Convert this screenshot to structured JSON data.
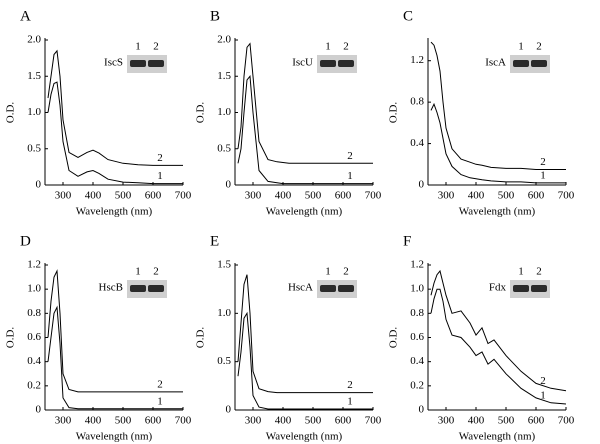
{
  "chart_data": [
    {
      "type": "line",
      "title": "A",
      "xlabel": "Wavelength (nm)",
      "ylabel": "O.D.",
      "x": [
        250,
        260,
        270,
        280,
        290,
        300,
        320,
        350,
        380,
        400,
        420,
        450,
        500,
        550,
        600,
        650,
        700
      ],
      "xlim": [
        240,
        700
      ],
      "xticks": [
        300,
        400,
        500,
        600,
        700
      ],
      "ylim": [
        0,
        2.0
      ],
      "yticks": [
        0,
        0.5,
        {
          "value": 1,
          "label": "1.0"
        },
        1.5,
        {
          "value": 2,
          "label": "2.0"
        }
      ],
      "series": [
        {
          "name": "1",
          "color": "#000000",
          "values": [
            1.0,
            1.25,
            1.4,
            1.42,
            1.1,
            0.6,
            0.2,
            0.12,
            0.18,
            0.2,
            0.16,
            0.08,
            0.04,
            0.03,
            0.02,
            0.02,
            0.02
          ]
        },
        {
          "name": "2",
          "color": "#000000",
          "values": [
            1.2,
            1.5,
            1.8,
            1.85,
            1.5,
            0.9,
            0.45,
            0.38,
            0.45,
            0.48,
            0.44,
            0.35,
            0.3,
            0.28,
            0.27,
            0.27,
            0.27
          ]
        }
      ],
      "inset": {
        "label": "IscS",
        "lanes": [
          "1",
          "2"
        ]
      }
    },
    {
      "type": "line",
      "title": "B",
      "xlabel": "Wavelength (nm)",
      "ylabel": "O.D.",
      "x": [
        250,
        260,
        270,
        280,
        290,
        300,
        320,
        350,
        380,
        400,
        420,
        450,
        500,
        550,
        600,
        650,
        700
      ],
      "xlim": [
        240,
        700
      ],
      "xticks": [
        300,
        400,
        500,
        600,
        700
      ],
      "ylim": [
        0,
        2.0
      ],
      "yticks": [
        0,
        0.5,
        {
          "value": 1,
          "label": "1.0"
        },
        1.5,
        {
          "value": 2,
          "label": "2.0"
        }
      ],
      "series": [
        {
          "name": "1",
          "color": "#000000",
          "values": [
            0.3,
            0.5,
            1.0,
            1.45,
            1.5,
            1.0,
            0.2,
            0.05,
            0.03,
            0.02,
            0.02,
            0.02,
            0.02,
            0.02,
            0.02,
            0.02,
            0.02
          ]
        },
        {
          "name": "2",
          "color": "#000000",
          "values": [
            0.5,
            0.8,
            1.5,
            1.9,
            1.95,
            1.5,
            0.6,
            0.35,
            0.32,
            0.31,
            0.3,
            0.3,
            0.3,
            0.3,
            0.3,
            0.3,
            0.3
          ]
        }
      ],
      "inset": {
        "label": "IscU",
        "lanes": [
          "1",
          "2"
        ]
      }
    },
    {
      "type": "line",
      "title": "C",
      "xlabel": "Wavelength (nm)",
      "ylabel": "O.D.",
      "x": [
        250,
        260,
        270,
        280,
        290,
        300,
        320,
        350,
        380,
        400,
        420,
        450,
        500,
        550,
        600,
        650,
        700
      ],
      "xlim": [
        240,
        700
      ],
      "xticks": [
        300,
        400,
        500,
        600,
        700
      ],
      "ylim": [
        0,
        1.4
      ],
      "yticks": [
        0,
        0.4,
        0.8,
        1.2
      ],
      "series": [
        {
          "name": "1",
          "color": "#000000",
          "values": [
            0.72,
            0.78,
            0.7,
            0.6,
            0.45,
            0.3,
            0.18,
            0.1,
            0.07,
            0.06,
            0.05,
            0.04,
            0.03,
            0.03,
            0.02,
            0.02,
            0.02
          ]
        },
        {
          "name": "2",
          "color": "#000000",
          "values": [
            1.38,
            1.35,
            1.25,
            1.1,
            0.8,
            0.55,
            0.35,
            0.25,
            0.22,
            0.2,
            0.19,
            0.17,
            0.16,
            0.16,
            0.15,
            0.15,
            0.15
          ]
        }
      ],
      "inset": {
        "label": "IscA",
        "lanes": [
          "1",
          "2"
        ]
      }
    },
    {
      "type": "line",
      "title": "D",
      "xlabel": "Wavelength (nm)",
      "ylabel": "O.D.",
      "x": [
        250,
        260,
        270,
        280,
        290,
        300,
        320,
        350,
        380,
        400,
        420,
        450,
        500,
        550,
        600,
        650,
        700
      ],
      "xlim": [
        240,
        700
      ],
      "xticks": [
        300,
        400,
        500,
        600,
        700
      ],
      "ylim": [
        0,
        1.2
      ],
      "yticks": [
        0,
        0.2,
        0.4,
        0.6,
        0.8,
        {
          "value": 1,
          "label": "1.0"
        },
        1.2
      ],
      "series": [
        {
          "name": "1",
          "color": "#000000",
          "values": [
            0.4,
            0.6,
            0.8,
            0.85,
            0.55,
            0.1,
            0.02,
            0.01,
            0.01,
            0.01,
            0.01,
            0.01,
            0.01,
            0.01,
            0.01,
            0.01,
            0.01
          ]
        },
        {
          "name": "2",
          "color": "#000000",
          "values": [
            0.6,
            0.9,
            1.1,
            1.15,
            0.8,
            0.3,
            0.17,
            0.15,
            0.15,
            0.15,
            0.15,
            0.15,
            0.15,
            0.15,
            0.15,
            0.15,
            0.15
          ]
        }
      ],
      "inset": {
        "label": "HscB",
        "lanes": [
          "1",
          "2"
        ]
      }
    },
    {
      "type": "line",
      "title": "E",
      "xlabel": "Wavelength (nm)",
      "ylabel": "O.D.",
      "x": [
        250,
        260,
        270,
        280,
        290,
        300,
        320,
        350,
        380,
        400,
        420,
        450,
        500,
        550,
        600,
        650,
        700
      ],
      "xlim": [
        240,
        700
      ],
      "xticks": [
        300,
        400,
        500,
        600,
        700
      ],
      "ylim": [
        0,
        1.5
      ],
      "yticks": [
        0,
        0.5,
        {
          "value": 1,
          "label": "1.0"
        },
        1.5
      ],
      "series": [
        {
          "name": "1",
          "color": "#000000",
          "values": [
            0.35,
            0.6,
            0.95,
            1.0,
            0.65,
            0.15,
            0.03,
            0.01,
            0.01,
            0.01,
            0.01,
            0.01,
            0.01,
            0.01,
            0.01,
            0.01,
            0.01
          ]
        },
        {
          "name": "2",
          "color": "#000000",
          "values": [
            0.5,
            0.9,
            1.3,
            1.4,
            1.0,
            0.4,
            0.22,
            0.19,
            0.18,
            0.18,
            0.18,
            0.18,
            0.18,
            0.18,
            0.18,
            0.18,
            0.18
          ]
        }
      ],
      "inset": {
        "label": "HscA",
        "lanes": [
          "1",
          "2"
        ]
      }
    },
    {
      "type": "line",
      "title": "F",
      "xlabel": "Wavelength (nm)",
      "ylabel": "O.D.",
      "x": [
        250,
        260,
        270,
        280,
        290,
        300,
        320,
        350,
        380,
        400,
        420,
        440,
        460,
        500,
        550,
        600,
        650,
        700
      ],
      "xlim": [
        240,
        700
      ],
      "xticks": [
        300,
        400,
        500,
        600,
        700
      ],
      "ylim": [
        0,
        1.2
      ],
      "yticks": [
        0,
        0.2,
        0.4,
        0.6,
        0.8,
        {
          "value": 1,
          "label": "1.0"
        },
        1.2
      ],
      "series": [
        {
          "name": "1",
          "color": "#000000",
          "values": [
            0.8,
            0.92,
            1.0,
            1.0,
            0.9,
            0.75,
            0.62,
            0.6,
            0.52,
            0.45,
            0.48,
            0.38,
            0.42,
            0.3,
            0.18,
            0.1,
            0.06,
            0.05
          ]
        },
        {
          "name": "2",
          "color": "#000000",
          "values": [
            0.95,
            1.05,
            1.12,
            1.15,
            1.05,
            0.95,
            0.8,
            0.82,
            0.72,
            0.62,
            0.68,
            0.55,
            0.58,
            0.45,
            0.32,
            0.22,
            0.18,
            0.16
          ]
        }
      ],
      "inset": {
        "label": "Fdx",
        "lanes": [
          "1",
          "2"
        ]
      }
    }
  ]
}
